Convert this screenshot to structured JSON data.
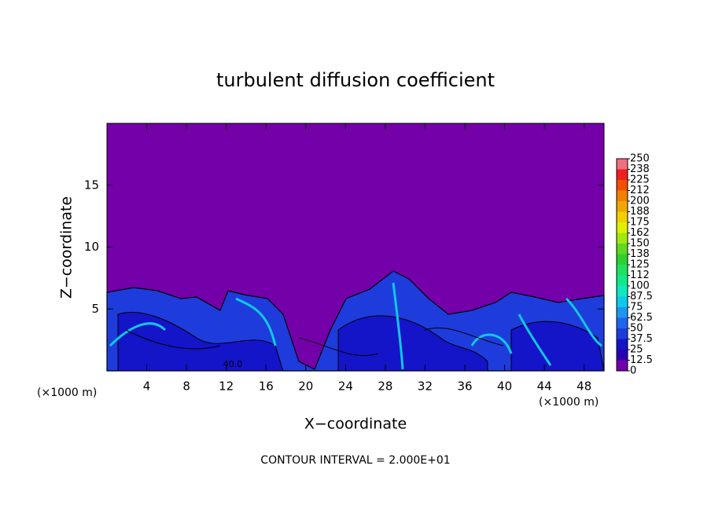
{
  "chart_data": {
    "type": "contour",
    "title": "turbulent diffusion coefficient",
    "x_label": "X−coordinate",
    "y_label": "Z−coordinate",
    "x_unit_left": "(×1000 m)",
    "x_unit_right": "(×1000 m)",
    "footer": "CONTOUR INTERVAL = 2.000E+01",
    "annotation": "40.0",
    "xlim": [
      0,
      50
    ],
    "xticks": [
      4,
      8,
      12,
      16,
      20,
      24,
      28,
      32,
      36,
      40,
      44,
      48
    ],
    "ylim": [
      0,
      20
    ],
    "yticks": [
      5,
      10,
      15
    ],
    "colorbar": {
      "levels": [
        0,
        12.5,
        25,
        37.5,
        50,
        62.5,
        75,
        87.5,
        100,
        112,
        125,
        138,
        150,
        162,
        175,
        188,
        200,
        212,
        225,
        238,
        250
      ],
      "colors": [
        "#7400aa",
        "#2a00b4",
        "#1414c8",
        "#1e3cdc",
        "#1e64f0",
        "#1e96f0",
        "#10c8e8",
        "#10e8c0",
        "#10e890",
        "#20e060",
        "#30d030",
        "#60d820",
        "#a0e810",
        "#e0f000",
        "#f0d000",
        "#f0a800",
        "#f08000",
        "#f05000",
        "#f02020",
        "#f07080"
      ]
    }
  }
}
